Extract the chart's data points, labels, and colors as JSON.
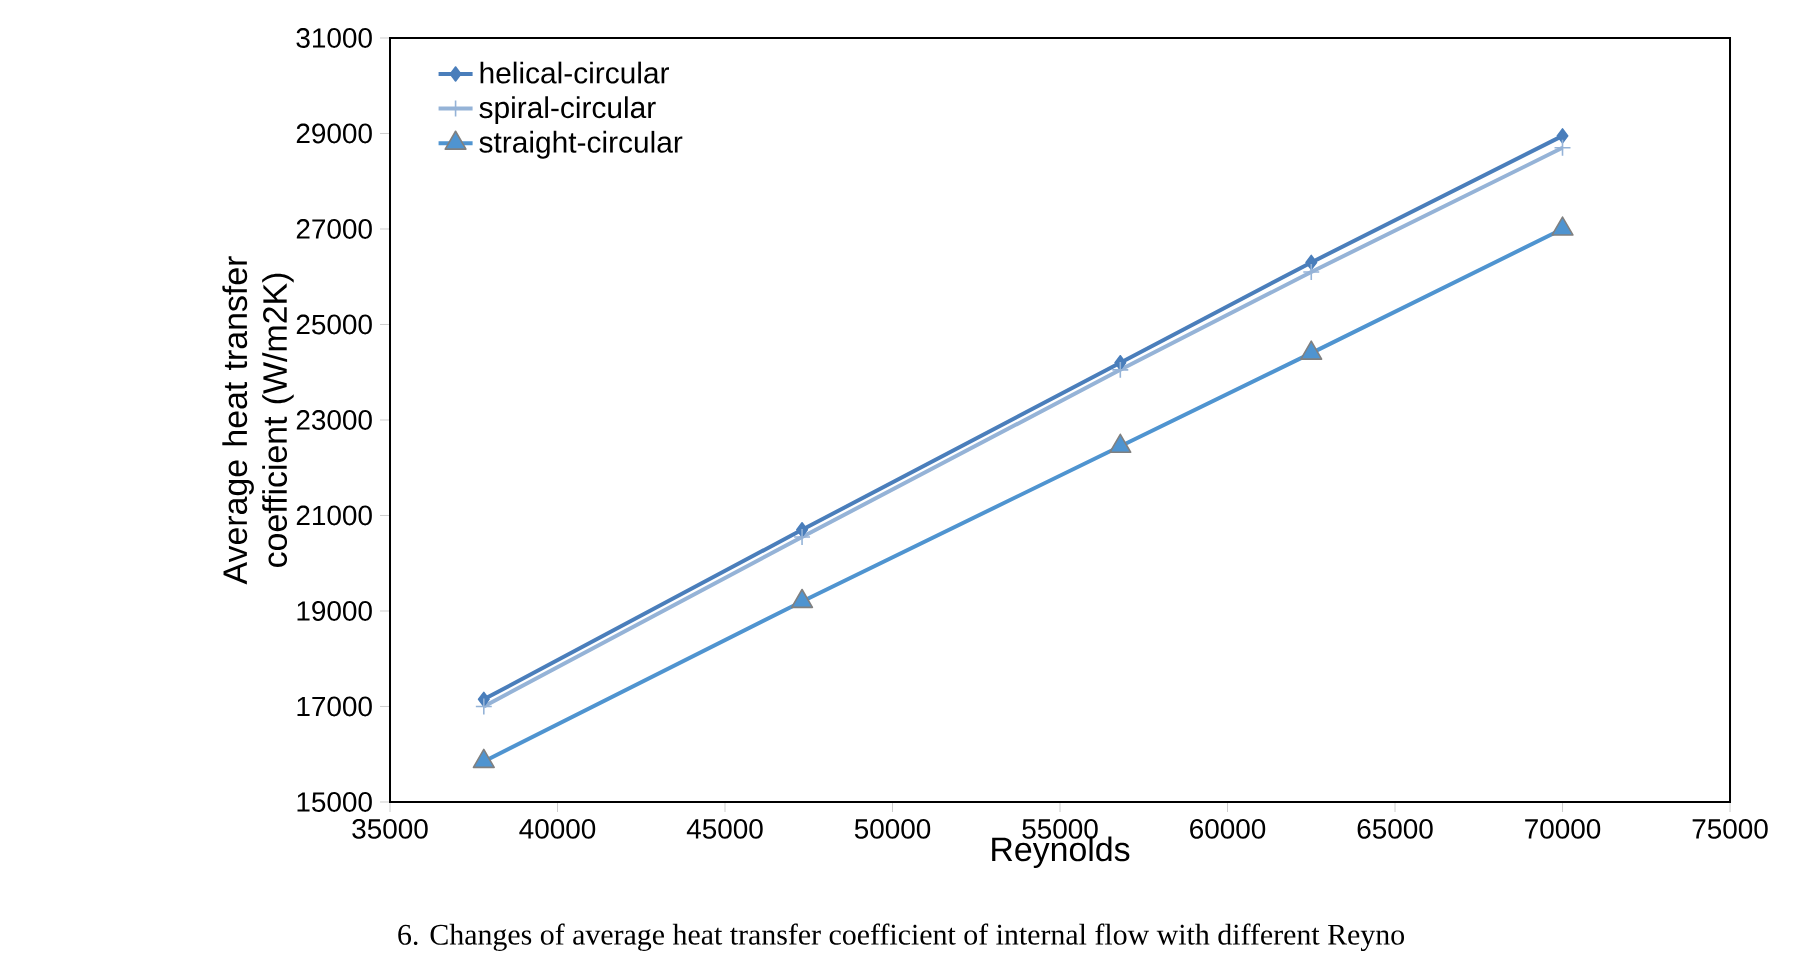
{
  "chart_data": {
    "type": "line",
    "xlabel": "Reynolds",
    "ylabel": "Average heat transfer coefficient (W/m2K)",
    "annotations": [
      "6. Changes of average heat transfer coefficient of internal flow with different Reyno"
    ],
    "x": [
      37800,
      47300,
      56800,
      62500,
      70000
    ],
    "series": [
      {
        "name": "helical-circular",
        "color": "#4a7ebb",
        "marker": "diamond",
        "values": [
          17150,
          20700,
          24200,
          26300,
          28950
        ]
      },
      {
        "name": "spiral-circular",
        "color": "#95b3d7",
        "marker": "cross",
        "values": [
          17000,
          20550,
          24050,
          26100,
          28700
        ]
      },
      {
        "name": "straight-circular",
        "color": "#4f94d0",
        "marker": "triangle",
        "values": [
          15850,
          19200,
          22450,
          24400,
          27000
        ]
      }
    ],
    "xlim": [
      35000,
      75000
    ],
    "xticks": [
      35000,
      40000,
      45000,
      50000,
      55000,
      60000,
      65000,
      70000,
      75000
    ],
    "ylim": [
      15000,
      31000
    ],
    "yticks": [
      15000,
      17000,
      19000,
      21000,
      23000,
      25000,
      27000,
      29000,
      31000
    ],
    "grid": false,
    "legend": "top left",
    "line_style": "solid"
  }
}
